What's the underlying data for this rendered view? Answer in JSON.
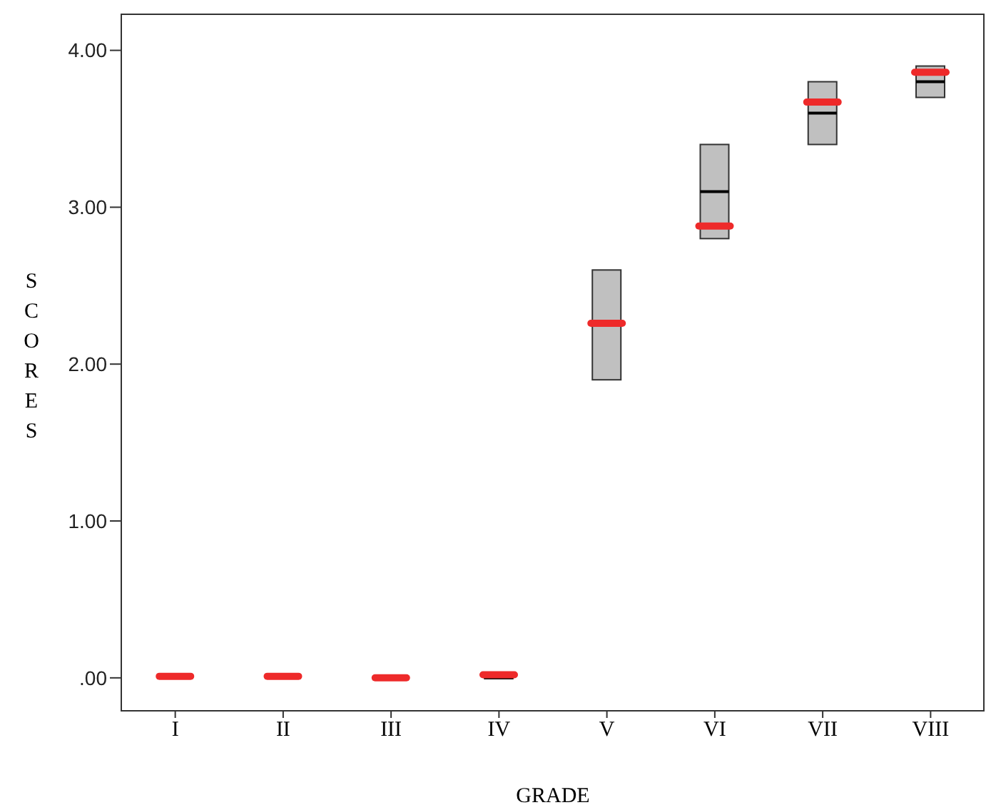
{
  "chart_data": {
    "type": "box",
    "xlabel": "GRADE",
    "ylabel": "SCORES",
    "categories": [
      "I",
      "II",
      "III",
      "IV",
      "V",
      "VI",
      "VII",
      "VIII"
    ],
    "color": "#c0c0c0",
    "boxes": [
      {
        "low": 0,
        "q1": 0,
        "median": 0,
        "q3": 0,
        "high": 0,
        "mean": 0.01
      },
      {
        "low": 0,
        "q1": 0,
        "median": 0,
        "q3": 0,
        "high": 0,
        "mean": 0.01
      },
      {
        "low": 0,
        "q1": 0,
        "median": 0,
        "q3": 0,
        "high": 0,
        "mean": 0
      },
      {
        "low": 0,
        "q1": 0,
        "median": 0,
        "q3": 0,
        "high": 0,
        "mean": 0.02
      },
      {
        "low": 1.9,
        "q1": 1.9,
        "median": 2.26,
        "q3": 2.6,
        "high": 2.6,
        "mean": 2.26
      },
      {
        "low": 2.8,
        "q1": 2.8,
        "median": 3.1,
        "q3": 3.4,
        "high": 3.4,
        "mean": 2.88
      },
      {
        "low": 3.4,
        "q1": 3.4,
        "median": 3.6,
        "q3": 3.8,
        "high": 3.8,
        "mean": 3.67
      },
      {
        "low": 3.7,
        "q1": 3.7,
        "median": 3.8,
        "q3": 3.9,
        "high": 3.9,
        "mean": 3.86
      }
    ],
    "ylim": [
      -0.21,
      4.23
    ],
    "yticks": [
      {
        "value": 0,
        "label": ".00"
      },
      {
        "value": 1,
        "label": "1.00"
      },
      {
        "value": 2,
        "label": "2.00"
      },
      {
        "value": 3,
        "label": "3.00"
      },
      {
        "value": 4,
        "label": "4.00"
      }
    ],
    "grid": false
  }
}
